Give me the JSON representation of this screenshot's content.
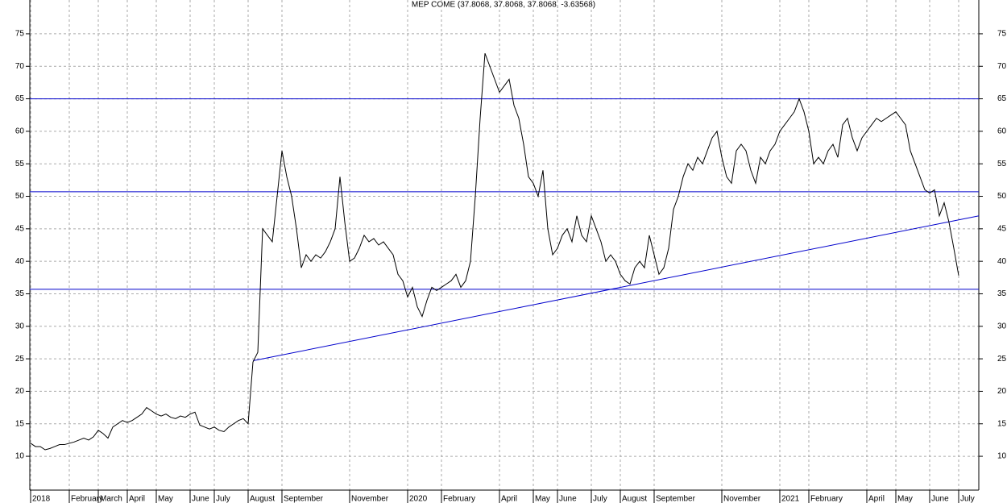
{
  "chart_data": {
    "type": "line",
    "title": "MEP COME (37.8068, 37.8068, 37.8068, -3.63568)",
    "categories": [
      "2018",
      null,
      null,
      null,
      null,
      null,
      null,
      null,
      "February",
      null,
      null,
      null,
      null,
      null,
      "March",
      null,
      null,
      null,
      null,
      null,
      "April",
      null,
      null,
      null,
      null,
      null,
      "May",
      null,
      null,
      null,
      null,
      null,
      null,
      "June",
      null,
      null,
      null,
      null,
      "July",
      null,
      null,
      null,
      null,
      null,
      null,
      "August",
      null,
      null,
      null,
      null,
      null,
      null,
      "September",
      null,
      null,
      null,
      null,
      null,
      null,
      null,
      null,
      null,
      null,
      null,
      null,
      null,
      "November",
      null,
      null,
      null,
      null,
      null,
      null,
      null,
      null,
      null,
      null,
      null,
      "2020",
      null,
      null,
      null,
      null,
      null,
      null,
      "February",
      null,
      null,
      null,
      null,
      null,
      null,
      null,
      null,
      null,
      null,
      null,
      "April",
      null,
      null,
      null,
      null,
      null,
      null,
      "May",
      null,
      null,
      null,
      null,
      "June",
      null,
      null,
      null,
      null,
      null,
      null,
      "July",
      null,
      null,
      null,
      null,
      null,
      "August",
      null,
      null,
      null,
      null,
      null,
      null,
      "September",
      null,
      null,
      null,
      null,
      null,
      null,
      null,
      null,
      null,
      null,
      null,
      null,
      null,
      "November",
      null,
      null,
      null,
      null,
      null,
      null,
      null,
      null,
      null,
      null,
      null,
      "2021",
      null,
      null,
      null,
      null,
      null,
      "February",
      null,
      null,
      null,
      null,
      null,
      null,
      null,
      null,
      null,
      null,
      null,
      "April",
      null,
      null,
      null,
      null,
      null,
      "May",
      null,
      null,
      null,
      null,
      null,
      null,
      "June",
      null,
      null,
      null,
      null,
      null,
      "July"
    ],
    "values": [
      12,
      11.5,
      11.5,
      11,
      11.2,
      11.5,
      11.8,
      11.8,
      12,
      12.2,
      12.5,
      12.8,
      12.5,
      13,
      14,
      13.5,
      12.8,
      14.5,
      15,
      15.5,
      15.2,
      15.5,
      16,
      16.5,
      17.5,
      17,
      16.5,
      16.2,
      16.5,
      16,
      15.8,
      16.2,
      16,
      16.5,
      16.8,
      14.8,
      14.5,
      14.2,
      14.5,
      14,
      13.8,
      14.5,
      15,
      15.5,
      15.8,
      15,
      24.5,
      26,
      45,
      44,
      43,
      50,
      57,
      53,
      50,
      45,
      39,
      41,
      40,
      41,
      40.5,
      41.5,
      43,
      45,
      53,
      46,
      40,
      40.5,
      42,
      44,
      43,
      43.5,
      42.5,
      43,
      42,
      41,
      38,
      37,
      34.5,
      36,
      33,
      31.5,
      34,
      36,
      35.5,
      36,
      36.5,
      37,
      38,
      36,
      37,
      40,
      50,
      62,
      72,
      70,
      68,
      66,
      67,
      68,
      64,
      62,
      58,
      53,
      52,
      50,
      54,
      45,
      41,
      42,
      44,
      45,
      43,
      47,
      44,
      43,
      47,
      45,
      43,
      40,
      41,
      40,
      38,
      37,
      36.5,
      39,
      40,
      39,
      44,
      41,
      38,
      39,
      42,
      48,
      50,
      53,
      55,
      54,
      56,
      55,
      57,
      59,
      60,
      56,
      53,
      52,
      57,
      58,
      57,
      54,
      52,
      56,
      55,
      57,
      58,
      60,
      61,
      62,
      63,
      65,
      63,
      60,
      55,
      56,
      55,
      57,
      58,
      56,
      61,
      62,
      59,
      57,
      59,
      60,
      61,
      62,
      61.5,
      62,
      62.5,
      63,
      62,
      61,
      57,
      55,
      53,
      51,
      50.5,
      51,
      47,
      49,
      46,
      42,
      37.8068
    ],
    "color": "#000000",
    "ylim": [
      4.8,
      80.2
    ],
    "yticks": [
      10,
      15,
      20,
      25,
      30,
      35,
      40,
      45,
      50,
      55,
      60,
      65,
      70,
      75
    ],
    "grid": true,
    "hlines": [
      65,
      50.7,
      35.7
    ],
    "line_color": "#0000cc",
    "trendline": {
      "x": [
        46,
        196.2
      ],
      "y": [
        24.7,
        47
      ]
    }
  }
}
